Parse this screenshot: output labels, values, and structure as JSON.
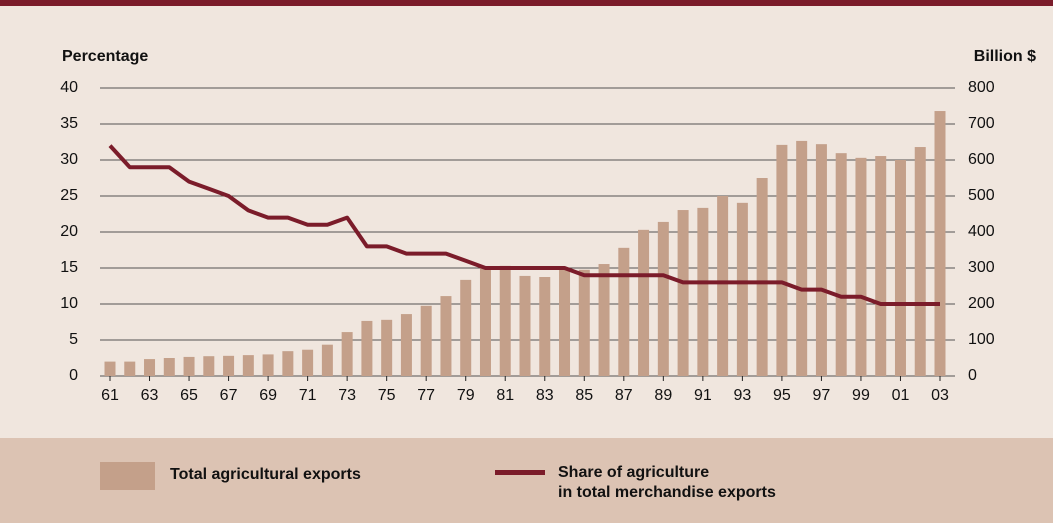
{
  "chart_data": {
    "type": "bar_line",
    "ylabel": "Percentage",
    "y2label": "Billion $",
    "categories": [
      "61",
      null,
      "63",
      null,
      "65",
      null,
      "67",
      null,
      "69",
      null,
      "71",
      null,
      "73",
      null,
      "75",
      null,
      "77",
      null,
      "79",
      null,
      "81",
      null,
      "83",
      null,
      "85",
      null,
      "87",
      null,
      "89",
      null,
      "91",
      null,
      "93",
      null,
      "95",
      null,
      "97",
      null,
      "99",
      null,
      "01",
      null,
      "03"
    ],
    "ylim": [
      0,
      40
    ],
    "yticks": [
      0,
      5,
      10,
      15,
      20,
      25,
      30,
      35,
      40
    ],
    "y2lim": [
      0,
      800
    ],
    "y2ticks": [
      0,
      100,
      200,
      300,
      400,
      500,
      600,
      700,
      800
    ],
    "grid": true,
    "series": [
      {
        "name": "Total agricultural exports",
        "kind": "bar",
        "axis": "y2",
        "color": "#c4a08a",
        "values": [
          40,
          40,
          47,
          50,
          53,
          55,
          56,
          58,
          60,
          69,
          73,
          87,
          122,
          153,
          156,
          172,
          195,
          222,
          267,
          300,
          306,
          278,
          275,
          297,
          295,
          311,
          356,
          406,
          428,
          461,
          467,
          500,
          481,
          550,
          642,
          653,
          644,
          619,
          606,
          611,
          600,
          636,
          736
        ]
      },
      {
        "name": "Share of agriculture\nin total merchandise exports",
        "kind": "line",
        "color": "#7b1c2a",
        "values": [
          32,
          29,
          29,
          29,
          27,
          26,
          25,
          23,
          22,
          22,
          21,
          21,
          22,
          18,
          18,
          17,
          17,
          17,
          16,
          15,
          15,
          15,
          15,
          15,
          14,
          14,
          14,
          14,
          14,
          13,
          13,
          13,
          13,
          13,
          13,
          12,
          12,
          11,
          11,
          10,
          10,
          10,
          10
        ]
      }
    ]
  }
}
